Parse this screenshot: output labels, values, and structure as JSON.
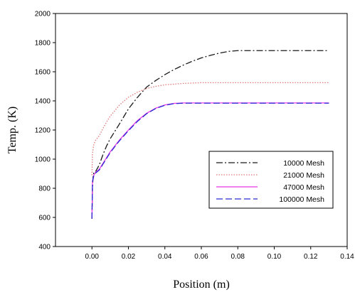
{
  "chart_data": {
    "type": "line",
    "title": "",
    "xlabel": "Position (m)",
    "ylabel": "Temp. (K)",
    "xlim": [
      -0.02,
      0.14
    ],
    "ylim": [
      400,
      2000
    ],
    "xticks": [
      0.0,
      0.02,
      0.04,
      0.06,
      0.08,
      0.1,
      0.12,
      0.14
    ],
    "xtick_labels": [
      "0.00",
      "0.02",
      "0.04",
      "0.06",
      "0.08",
      "0.10",
      "0.12",
      "0.14"
    ],
    "yticks": [
      400,
      600,
      800,
      1000,
      1200,
      1400,
      1600,
      1800,
      2000
    ],
    "ytick_labels": [
      "400",
      "600",
      "800",
      "1000",
      "1200",
      "1400",
      "1600",
      "1800",
      "2000"
    ],
    "grid": false,
    "legend_position": "lower-right",
    "series": [
      {
        "name": "10000 Mesh",
        "color": "#1a1a1a",
        "style": "dash-dot",
        "x": [
          0,
          0.0003,
          0.0006,
          0.001,
          0.002,
          0.004,
          0.006,
          0.008,
          0.01,
          0.015,
          0.02,
          0.025,
          0.03,
          0.035,
          0.04,
          0.045,
          0.05,
          0.055,
          0.06,
          0.065,
          0.07,
          0.075,
          0.08,
          0.085,
          0.09,
          0.1,
          0.11,
          0.12,
          0.13
        ],
        "y": [
          590,
          800,
          880,
          905,
          915,
          960,
          1030,
          1090,
          1140,
          1240,
          1345,
          1425,
          1495,
          1540,
          1580,
          1615,
          1645,
          1672,
          1695,
          1713,
          1728,
          1740,
          1745,
          1745,
          1745,
          1745,
          1745,
          1745,
          1745
        ]
      },
      {
        "name": "21000 Mesh",
        "color": "#e07a7a",
        "style": "dotted",
        "x": [
          0,
          0.0003,
          0.001,
          0.002,
          0.004,
          0.006,
          0.008,
          0.01,
          0.015,
          0.02,
          0.025,
          0.03,
          0.035,
          0.04,
          0.05,
          0.06,
          0.07,
          0.08,
          0.09,
          0.1,
          0.11,
          0.12,
          0.13
        ],
        "y": [
          890,
          1040,
          1100,
          1130,
          1160,
          1210,
          1255,
          1295,
          1370,
          1425,
          1460,
          1485,
          1500,
          1510,
          1520,
          1525,
          1525,
          1525,
          1525,
          1525,
          1525,
          1525,
          1525
        ]
      },
      {
        "name": "47000 Mesh",
        "color": "#e838e8",
        "style": "solid",
        "x": [
          0,
          0.0003,
          0.001,
          0.002,
          0.004,
          0.006,
          0.008,
          0.01,
          0.015,
          0.02,
          0.025,
          0.03,
          0.035,
          0.04,
          0.045,
          0.05,
          0.06,
          0.07,
          0.08,
          0.09,
          0.1,
          0.11,
          0.12,
          0.13
        ],
        "y": [
          600,
          850,
          890,
          910,
          930,
          970,
          1010,
          1050,
          1130,
          1200,
          1265,
          1315,
          1350,
          1372,
          1383,
          1386,
          1386,
          1386,
          1386,
          1386,
          1386,
          1386,
          1386,
          1386
        ]
      },
      {
        "name": "100000 Mesh",
        "color": "#2b2bd6",
        "style": "dashed",
        "x": [
          0,
          0.0003,
          0.001,
          0.002,
          0.004,
          0.006,
          0.008,
          0.01,
          0.015,
          0.02,
          0.025,
          0.03,
          0.035,
          0.04,
          0.045,
          0.05,
          0.06,
          0.07,
          0.08,
          0.09,
          0.1,
          0.11,
          0.12,
          0.13
        ],
        "y": [
          590,
          845,
          885,
          905,
          925,
          965,
          1005,
          1045,
          1125,
          1195,
          1260,
          1312,
          1348,
          1370,
          1381,
          1384,
          1384,
          1384,
          1384,
          1384,
          1384,
          1384,
          1384,
          1384
        ]
      }
    ]
  }
}
